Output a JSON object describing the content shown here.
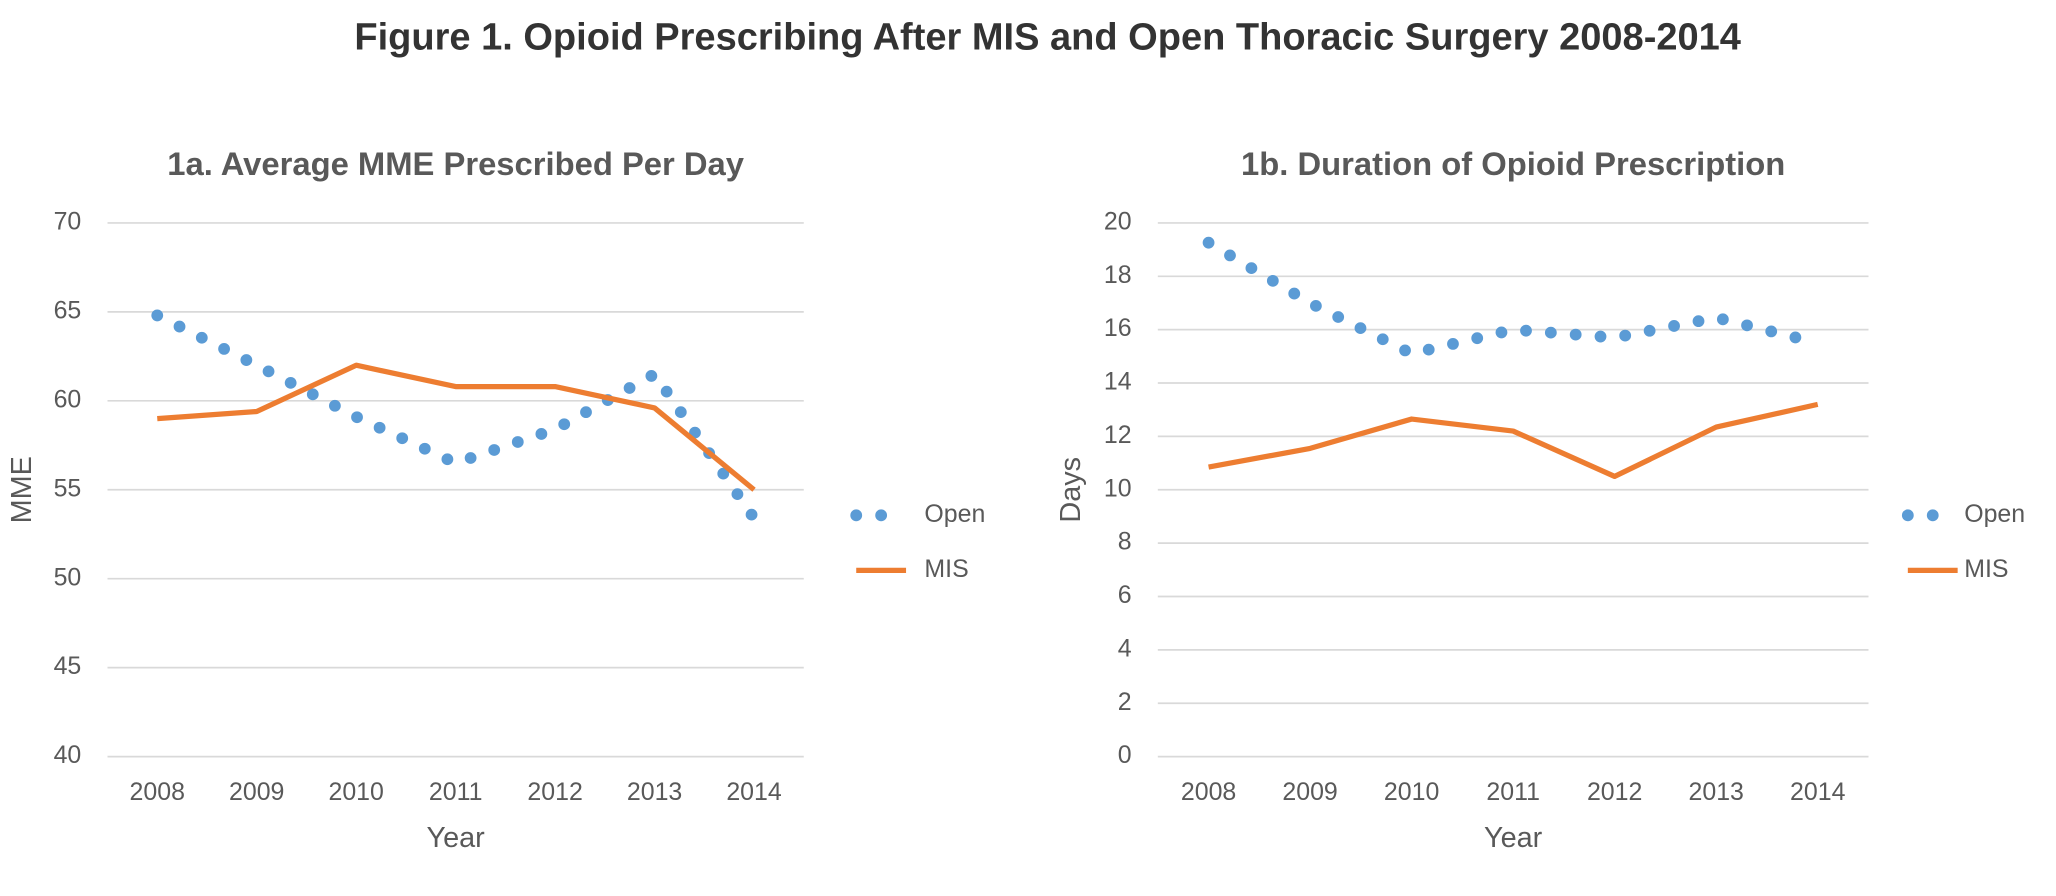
{
  "title": "Figure 1. Opioid Prescribing After MIS and Open Thoracic Surgery 2008-2014",
  "chart_data": [
    {
      "type": "line",
      "title": "1a. Average MME Prescribed Per Day",
      "x_label": "Year",
      "y_label": "MME",
      "categories": [
        "2008",
        "2009",
        "2010",
        "2011",
        "2012",
        "2013",
        "2014"
      ],
      "series": [
        {
          "name": "Open",
          "color": "#5b9bd5",
          "line_style": "dotted",
          "values": [
            64.8,
            62.0,
            59.1,
            56.5,
            58.4,
            61.5,
            53.4
          ]
        },
        {
          "name": "MIS",
          "color": "#ed7d31",
          "line_style": "solid",
          "values": [
            59.0,
            59.4,
            62.0,
            60.8,
            60.8,
            59.6,
            55.0
          ]
        }
      ],
      "ylim": [
        40,
        70
      ],
      "yticks": [
        40,
        45,
        50,
        55,
        60,
        65,
        70
      ],
      "grid": true,
      "legend": "right"
    },
    {
      "type": "line",
      "title": "1b. Duration of Opioid Prescription",
      "x_label": "Year",
      "y_label": "Days",
      "categories": [
        "2008",
        "2009",
        "2010",
        "2011",
        "2012",
        "2013",
        "2014"
      ],
      "series": [
        {
          "name": "Open",
          "color": "#5b9bd5",
          "line_style": "dotted",
          "values": [
            19.26,
            17.0,
            15.1,
            16.0,
            15.7,
            16.45,
            15.5
          ]
        },
        {
          "name": "MIS",
          "color": "#ed7d31",
          "line_style": "solid",
          "values": [
            10.85,
            11.55,
            12.65,
            12.2,
            10.5,
            12.35,
            13.2
          ]
        }
      ],
      "ylim": [
        0,
        20
      ],
      "yticks": [
        0,
        2,
        4,
        6,
        8,
        10,
        12,
        14,
        16,
        18,
        20
      ],
      "grid": true,
      "legend": "right"
    }
  ]
}
